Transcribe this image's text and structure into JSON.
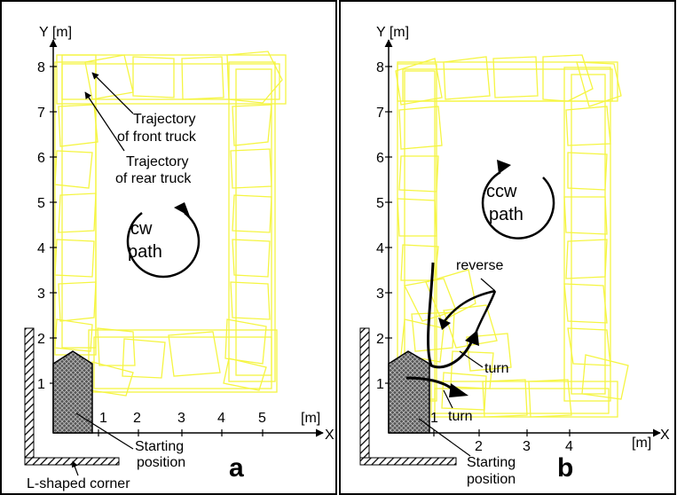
{
  "panels": [
    {
      "letter": "a",
      "y_axis_label": "Y [m]",
      "x_axis_label": "X",
      "x_unit": "[m]",
      "y_ticks": [
        "1",
        "2",
        "3",
        "4",
        "5",
        "6",
        "7",
        "8"
      ],
      "x_ticks": [
        "1",
        "2",
        "3",
        "4",
        "5"
      ],
      "front_truck_label_1": "Trajectory",
      "front_truck_label_2": "of front truck",
      "rear_truck_label_1": "Trajectory",
      "rear_truck_label_2": "of rear truck",
      "path_label_1": "cw",
      "path_label_2": "path",
      "start_label_1": "Starting",
      "start_label_2": "position",
      "corner_label": "L-shaped corner"
    },
    {
      "letter": "b",
      "y_axis_label": "Y [m]",
      "x_axis_label": "X",
      "x_unit": "[m]",
      "y_ticks": [
        "1",
        "2",
        "3",
        "4",
        "5",
        "6",
        "7",
        "8"
      ],
      "x_ticks": [
        "1",
        "2",
        "3",
        "4"
      ],
      "path_label_1": "ccw",
      "path_label_2": "path",
      "reverse_label": "reverse",
      "turn_label_1": "turn",
      "turn_label_2": "turn",
      "start_label_1": "Starting",
      "start_label_2": "position"
    }
  ],
  "colors": {
    "trajectory": "#f5f542",
    "frame": "#000000",
    "obstacle_fill": "#7a7a7a"
  }
}
